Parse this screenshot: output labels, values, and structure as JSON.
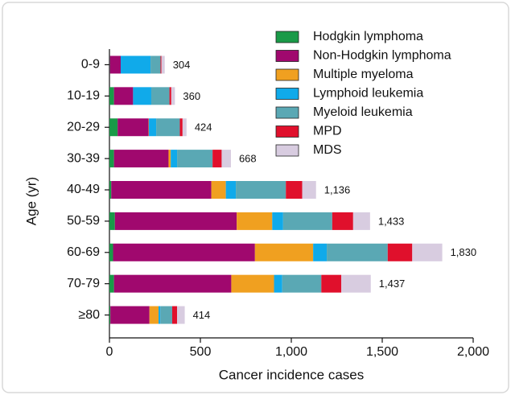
{
  "chart_data": {
    "type": "stacked-bar-horizontal",
    "xlabel": "Cancer incidence cases",
    "ylabel": "Age (yr)",
    "categories": [
      "0-9",
      "10-19",
      "20-29",
      "30-39",
      "40-49",
      "50-59",
      "60-69",
      "70-79",
      "≥80"
    ],
    "series": [
      {
        "name": "Hodgkin lymphoma",
        "color": "#1a9a48",
        "values": [
          2,
          25,
          45,
          25,
          10,
          30,
          20,
          25,
          5
        ]
      },
      {
        "name": "Non-Hodgkin lymphoma",
        "color": "#a0086e",
        "values": [
          60,
          105,
          170,
          300,
          550,
          670,
          780,
          645,
          215
        ]
      },
      {
        "name": "Multiple myeloma",
        "color": "#f0a020",
        "values": [
          0,
          0,
          2,
          12,
          80,
          195,
          320,
          235,
          50
        ]
      },
      {
        "name": "Lymphoid leukemia",
        "color": "#10aaea",
        "values": [
          164,
          100,
          40,
          35,
          55,
          60,
          75,
          45,
          10
        ]
      },
      {
        "name": "Myeloid leukemia",
        "color": "#5aa8b4",
        "values": [
          55,
          100,
          130,
          195,
          275,
          270,
          335,
          215,
          65
        ]
      },
      {
        "name": "MPD",
        "color": "#e0102c",
        "values": [
          5,
          10,
          15,
          50,
          90,
          115,
          135,
          110,
          27
        ]
      },
      {
        "name": "MDS",
        "color": "#d8cce0",
        "values": [
          18,
          20,
          22,
          51,
          76,
          93,
          165,
          162,
          42
        ]
      }
    ],
    "totals": {
      "values": [
        304,
        360,
        424,
        668,
        1136,
        1433,
        1830,
        1437,
        414
      ],
      "value_labels": [
        "304",
        "360",
        "424",
        "668",
        "1,136",
        "1,433",
        "1,830",
        "1,437",
        "414"
      ]
    },
    "xlim": [
      0,
      2000
    ],
    "xticks": [
      0,
      500,
      {
        "value": 1000,
        "label": "1,000"
      },
      {
        "value": 1500,
        "label": "1,500"
      },
      {
        "value": 2000,
        "label": "2,000"
      }
    ],
    "legend": "top-right"
  }
}
